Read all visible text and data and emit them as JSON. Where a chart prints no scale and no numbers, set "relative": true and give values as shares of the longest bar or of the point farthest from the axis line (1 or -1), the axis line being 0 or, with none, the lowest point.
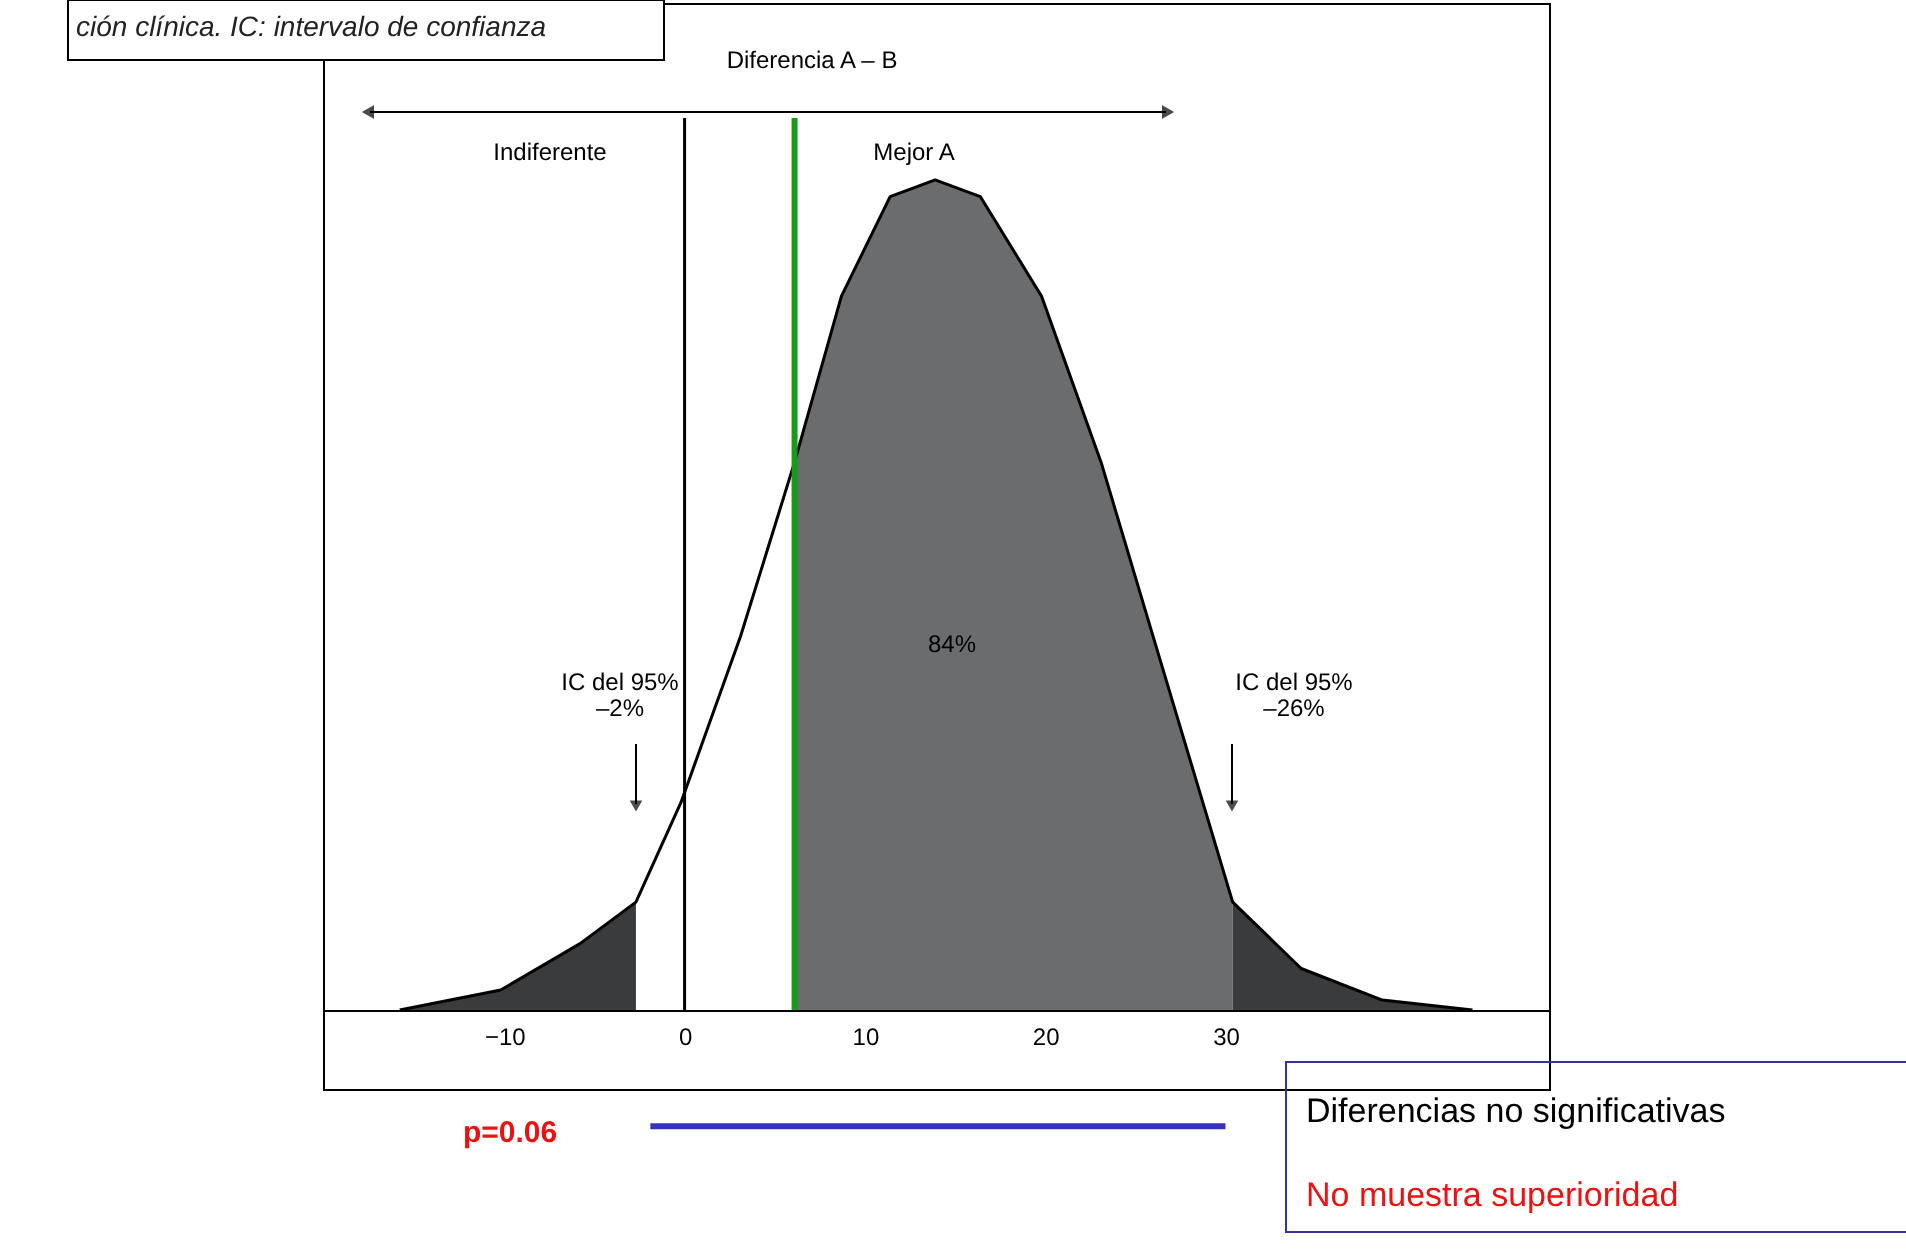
{
  "chart_data": {
    "type": "area",
    "relative": true,
    "xlim": [
      -20,
      48
    ],
    "xticks": [
      -10,
      0,
      10,
      20,
      30
    ],
    "grid": false,
    "series": [
      {
        "type": "area",
        "color": "#3a3b3d",
        "x": [
          -15.8,
          -10.2,
          -5.8,
          -2.7
        ],
        "values": [
          0,
          0.024,
          0.08,
          0.13
        ]
      },
      {
        "type": "area",
        "color": "#6b6c6e",
        "x": [
          6.1,
          8.7,
          11.4,
          13.9,
          16.4,
          19.8,
          23.1,
          26.4,
          30.4
        ],
        "values": [
          0.66,
          0.86,
          0.98,
          1,
          0.98,
          0.86,
          0.66,
          0.42,
          0.13
        ]
      },
      {
        "type": "area",
        "color": "#3a3b3d",
        "x": [
          30.4,
          34.2,
          38.7,
          43.7
        ],
        "values": [
          0.13,
          0.05,
          0.012,
          0
        ]
      },
      {
        "type": "line",
        "color": "#000000",
        "x": [
          -15.8,
          -10.2,
          -5.8,
          -2.7,
          -0.2,
          3.1,
          6.1,
          8.7,
          11.4,
          13.9,
          16.4,
          19.8,
          23.1,
          26.4,
          30.4,
          34.2,
          38.7,
          43.7
        ],
        "values": [
          0,
          0.024,
          0.08,
          0.13,
          0.25,
          0.45,
          0.66,
          0.86,
          0.98,
          1,
          0.98,
          0.86,
          0.66,
          0.42,
          0.13,
          0.05,
          0.012,
          0
        ]
      },
      {
        "type": "line",
        "color": "#3333bb",
        "x": [
          -1.9,
          14.4,
          30
        ],
        "values": [
          -0.14,
          -0.14,
          -0.14
        ]
      }
    ],
    "ref_lines": [
      {
        "axis": "x",
        "value": 0,
        "color": "#000000"
      },
      {
        "axis": "x",
        "value": 6.1,
        "color": "#1a9a1a"
      }
    ],
    "annotations": [
      "ción clínica. IC: intervalo de confianza",
      "Diferencia A – B",
      "Indiferente",
      "Mejor A",
      "p=0.06",
      "Diferencias no significativas",
      "No muestra superioridad",
      "84%",
      "IC del 95%\n–2%",
      "IC del 95%\n–26%"
    ]
  }
}
